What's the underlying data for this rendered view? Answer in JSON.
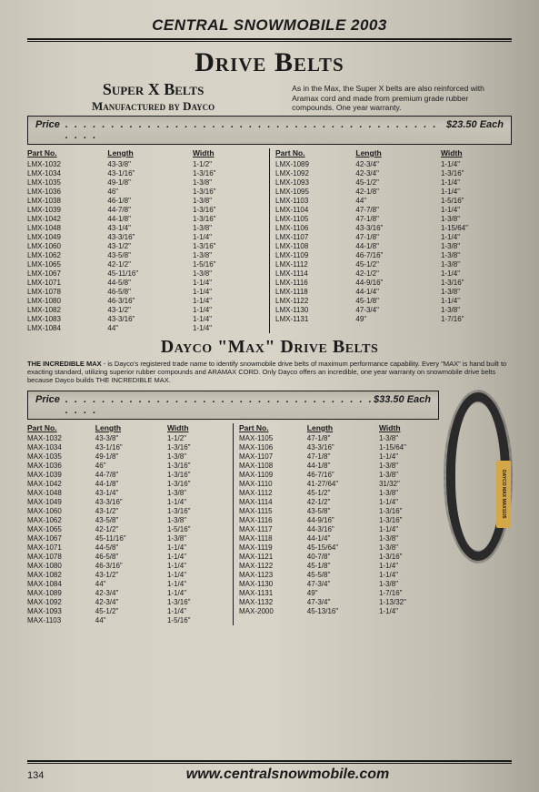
{
  "header": "CENTRAL SNOWMOBILE 2003",
  "main_title": "Drive Belts",
  "superx": {
    "title": "Super X Belts",
    "subtitle": "Manufactured by Dayco",
    "blurb": "As in the Max, the Super X belts are also reinforced with Aramax cord and made from premium grade rubber compounds. One year warranty.",
    "price_label": "Price",
    "price": "$23.50 Each",
    "columns": [
      "Part No.",
      "Length",
      "Width"
    ],
    "left": [
      [
        "LMX-1032",
        "43-3/8\"",
        "1-1/2\""
      ],
      [
        "LMX-1034",
        "43-1/16\"",
        "1-3/16\""
      ],
      [
        "LMX-1035",
        "49-1/8\"",
        "1-3/8\""
      ],
      [
        "LMX-1036",
        "46\"",
        "1-3/16\""
      ],
      [
        "LMX-1038",
        "46-1/8\"",
        "1-3/8\""
      ],
      [
        "LMX-1039",
        "44-7/8\"",
        "1-3/16\""
      ],
      [
        "LMX-1042",
        "44-1/8\"",
        "1-3/16\""
      ],
      [
        "LMX-1048",
        "43-1/4\"",
        "1-3/8\""
      ],
      [
        "LMX-1049",
        "43-3/16\"",
        "1-1/4\""
      ],
      [
        "LMX-1060",
        "43-1/2\"",
        "1-3/16\""
      ],
      [
        "LMX-1062",
        "43-5/8\"",
        "1-3/8\""
      ],
      [
        "LMX-1065",
        "42-1/2\"",
        "1-5/16\""
      ],
      [
        "LMX-1067",
        "45-11/16\"",
        "1-3/8\""
      ],
      [
        "LMX-1071",
        "44-5/8\"",
        "1-1/4\""
      ],
      [
        "LMX-1078",
        "46-5/8\"",
        "1-1/4\""
      ],
      [
        "LMX-1080",
        "46-3/16\"",
        "1-1/4\""
      ],
      [
        "LMX-1082",
        "43-1/2\"",
        "1-1/4\""
      ],
      [
        "LMX-1083",
        "43-3/16\"",
        "1-1/4\""
      ],
      [
        "LMX-1084",
        "44\"",
        "1-1/4\""
      ]
    ],
    "right": [
      [
        "LMX-1089",
        "42-3/4\"",
        "1-1/4\""
      ],
      [
        "LMX-1092",
        "42-3/4\"",
        "1-3/16\""
      ],
      [
        "LMX-1093",
        "45-1/2\"",
        "1-1/4\""
      ],
      [
        "LMX-1095",
        "42-1/8\"",
        "1-1/4\""
      ],
      [
        "LMX-1103",
        "44\"",
        "1-5/16\""
      ],
      [
        "LMX-1104",
        "47-7/8\"",
        "1-1/4\""
      ],
      [
        "LMX-1105",
        "47-1/8\"",
        "1-3/8\""
      ],
      [
        "LMX-1106",
        "43-3/16\"",
        "1-15/64\""
      ],
      [
        "LMX-1107",
        "47-1/8\"",
        "1-1/4\""
      ],
      [
        "LMX-1108",
        "44-1/8\"",
        "1-3/8\""
      ],
      [
        "LMX-1109",
        "46-7/16\"",
        "1-3/8\""
      ],
      [
        "LMX-1112",
        "45-1/2\"",
        "1-3/8\""
      ],
      [
        "LMX-1114",
        "42-1/2\"",
        "1-1/4\""
      ],
      [
        "LMX-1116",
        "44-9/16\"",
        "1-3/16\""
      ],
      [
        "LMX-1118",
        "44-1/4\"",
        "1-3/8\""
      ],
      [
        "LMX-1122",
        "45-1/8\"",
        "1-1/4\""
      ],
      [
        "LMX-1130",
        "47-3/4\"",
        "1-3/8\""
      ],
      [
        "LMX-1131",
        "49\"",
        "1-7/16\""
      ]
    ]
  },
  "max": {
    "title": "Dayco \"Max\" Drive Belts",
    "blurb_lead": "THE INCREDIBLE MAX",
    "blurb": " - is Dayco's registered trade name to identify snowmobile drive belts of maximum performance capability. Every \"MAX\" is hand built to exacting standard, utilizing superior rubber compounds and ARAMAX CORD. Only Dayco offers an incredible, one year warranty on snowmobile drive belts because Dayco builds THE INCREDIBLE MAX.",
    "price_label": "Price",
    "price": "$33.50 Each",
    "columns": [
      "Part No.",
      "Length",
      "Width"
    ],
    "left": [
      [
        "MAX-1032",
        "43-3/8\"",
        "1-1/2\""
      ],
      [
        "MAX-1034",
        "43-1/16\"",
        "1-3/16\""
      ],
      [
        "MAX-1035",
        "49-1/8\"",
        "1-3/8\""
      ],
      [
        "MAX-1036",
        "46\"",
        "1-3/16\""
      ],
      [
        "MAX-1039",
        "44-7/8\"",
        "1-3/16\""
      ],
      [
        "MAX-1042",
        "44-1/8\"",
        "1-3/16\""
      ],
      [
        "MAX-1048",
        "43-1/4\"",
        "1-3/8\""
      ],
      [
        "MAX-1049",
        "43-3/16\"",
        "1-1/4\""
      ],
      [
        "MAX-1060",
        "43-1/2\"",
        "1-3/16\""
      ],
      [
        "MAX-1062",
        "43-5/8\"",
        "1-3/8\""
      ],
      [
        "MAX-1065",
        "42-1/2\"",
        "1-5/16\""
      ],
      [
        "MAX-1067",
        "45-11/16\"",
        "1-3/8\""
      ],
      [
        "MAX-1071",
        "44-5/8\"",
        "1-1/4\""
      ],
      [
        "MAX-1078",
        "46-5/8\"",
        "1-1/4\""
      ],
      [
        "MAX-1080",
        "46-3/16\"",
        "1-1/4\""
      ],
      [
        "MAX-1082",
        "43-1/2\"",
        "1-1/4\""
      ],
      [
        "MAX-1084",
        "44\"",
        "1-1/4\""
      ],
      [
        "MAX-1089",
        "42-3/4\"",
        "1-1/4\""
      ],
      [
        "MAX-1092",
        "42-3/4\"",
        "1-3/16\""
      ],
      [
        "MAX-1093",
        "45-1/2\"",
        "1-1/4\""
      ],
      [
        "MAX-1103",
        "44\"",
        "1-5/16\""
      ]
    ],
    "right": [
      [
        "MAX-1105",
        "47-1/8\"",
        "1-3/8\""
      ],
      [
        "MAX-1106",
        "43-3/16\"",
        "1-15/64\""
      ],
      [
        "MAX-1107",
        "47-1/8\"",
        "1-1/4\""
      ],
      [
        "MAX-1108",
        "44-1/8\"",
        "1-3/8\""
      ],
      [
        "MAX-1109",
        "46-7/16\"",
        "1-3/8\""
      ],
      [
        "MAX-1110",
        "41-27/64\"",
        "31/32\""
      ],
      [
        "MAX-1112",
        "45-1/2\"",
        "1-3/8\""
      ],
      [
        "MAX-1114",
        "42-1/2\"",
        "1-1/4\""
      ],
      [
        "MAX-1115",
        "43-5/8\"",
        "1-3/16\""
      ],
      [
        "MAX-1116",
        "44-9/16\"",
        "1-3/16\""
      ],
      [
        "MAX-1117",
        "44-3/16\"",
        "1-1/4\""
      ],
      [
        "MAX-1118",
        "44-1/4\"",
        "1-3/8\""
      ],
      [
        "MAX-1119",
        "45-15/64\"",
        "1-3/8\""
      ],
      [
        "MAX-1121",
        "40-7/8\"",
        "1-3/16\""
      ],
      [
        "MAX-1122",
        "45-1/8\"",
        "1-1/4\""
      ],
      [
        "MAX-1123",
        "45-5/8\"",
        "1-1/4\""
      ],
      [
        "MAX-1130",
        "47-3/4\"",
        "1-3/8\""
      ],
      [
        "MAX-1131",
        "49\"",
        "1-7/16\""
      ],
      [
        "MAX-1132",
        "47-3/4\"",
        "1-13/32\""
      ],
      [
        "MAX-2000",
        "45-13/16\"",
        "1-1/4\""
      ]
    ],
    "belt_label": "DAYCO MAX MAX1105"
  },
  "footer": {
    "page": "134",
    "url": "www.centralsnowmobile.com"
  },
  "colors": {
    "text": "#1a1a1a",
    "bg": "#d4d0c4",
    "rule": "#1a1a1a",
    "belt_body": "#2a2a2a",
    "belt_label_bg": "#d4a848"
  }
}
